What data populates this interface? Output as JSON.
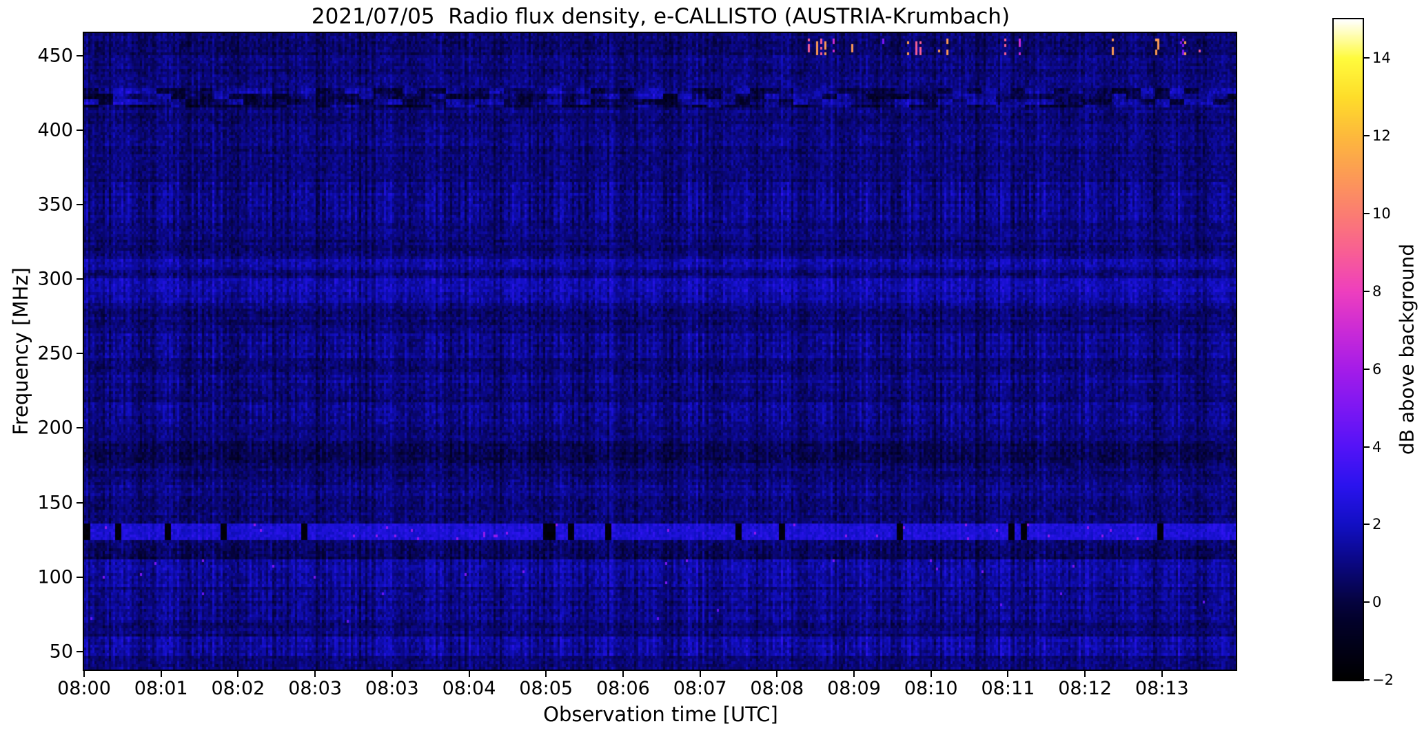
{
  "figure": {
    "background": "#ffffff"
  },
  "chart_data": {
    "type": "heatmap",
    "title": "2021/07/05  Radio flux density, e-CALLISTO (AUSTRIA-Krumbach)",
    "xlabel": "Observation time [UTC]",
    "ylabel": "Frequency [MHz]",
    "x_ticks": [
      "08:00",
      "08:01",
      "08:02",
      "08:03",
      "08:03",
      "08:04",
      "08:05",
      "08:06",
      "08:07",
      "08:08",
      "08:09",
      "08:10",
      "08:11",
      "08:12",
      "08:13"
    ],
    "y_ticks": [
      {
        "label": "450",
        "value": 450
      },
      {
        "label": "400",
        "value": 400
      },
      {
        "label": "350",
        "value": 350
      },
      {
        "label": "300",
        "value": 300
      },
      {
        "label": "250",
        "value": 250
      },
      {
        "label": "200",
        "value": 200
      },
      {
        "label": "150",
        "value": 150
      },
      {
        "label": "100",
        "value": 100
      },
      {
        "label": "50",
        "value": 50
      }
    ],
    "x_range_utc": [
      "08:00",
      "08:14"
    ],
    "y_range_mhz": [
      37,
      466
    ],
    "grid": false,
    "legend": "none",
    "background_color_hint": "#0a0890",
    "colorbar": {
      "label": "dB above background",
      "ticks": [
        {
          "label": "14",
          "value": 14
        },
        {
          "label": "12",
          "value": 12
        },
        {
          "label": "10",
          "value": 10
        },
        {
          "label": "8",
          "value": 8
        },
        {
          "label": "6",
          "value": 6
        },
        {
          "label": "4",
          "value": 4
        },
        {
          "label": "2",
          "value": 2
        },
        {
          "label": "0",
          "value": 0
        },
        {
          "label": "−2",
          "value": -2
        }
      ],
      "range": [
        -2,
        15
      ],
      "colormap": "gnuplot2-like",
      "stops": [
        {
          "v": -2.0,
          "c": "#000000"
        },
        {
          "v": -0.5,
          "c": "#02012a"
        },
        {
          "v": 0.0,
          "c": "#05033f"
        },
        {
          "v": 1.0,
          "c": "#0a0782"
        },
        {
          "v": 2.0,
          "c": "#120fc4"
        },
        {
          "v": 3.0,
          "c": "#2b13ee"
        },
        {
          "v": 4.0,
          "c": "#5413f7"
        },
        {
          "v": 5.0,
          "c": "#7d17f3"
        },
        {
          "v": 6.0,
          "c": "#a51ce8"
        },
        {
          "v": 7.0,
          "c": "#cb2bd6"
        },
        {
          "v": 8.0,
          "c": "#ee3fbe"
        },
        {
          "v": 9.0,
          "c": "#f85e95"
        },
        {
          "v": 10.0,
          "c": "#fb7d72"
        },
        {
          "v": 11.0,
          "c": "#fc9b55"
        },
        {
          "v": 12.0,
          "c": "#fdb93c"
        },
        {
          "v": 13.0,
          "c": "#fedd2a"
        },
        {
          "v": 14.0,
          "c": "#fffb3d"
        },
        {
          "v": 15.0,
          "c": "#ffffff"
        }
      ]
    },
    "background_level_db": 0.78,
    "noise_sigma_db": 0.55,
    "texture": "vertical instrument sweep striping over dark blue background",
    "bands": [
      {
        "f_lo": 450,
        "f_hi": 463,
        "kind": "rfi_spikes",
        "x_start_frac": 0.62,
        "spike_prob": 0.09,
        "spike_values_db": [
          5,
          7,
          9,
          11
        ],
        "base_add_db": -0.1
      },
      {
        "f_lo": 415,
        "f_hi": 429,
        "kind": "mottled",
        "block_amp_db": 1.25,
        "base_add_db": -0.1,
        "stripe_mul": 1.1
      },
      {
        "f_lo": 386,
        "f_hi": 398,
        "kind": "texture",
        "base_add_db": 0.15,
        "stripe_mul": 1.2
      },
      {
        "f_lo": 338,
        "f_hi": 366,
        "kind": "stripes",
        "base_add_db": 0.35,
        "stripe_mul": 1.7
      },
      {
        "f_lo": 306,
        "f_hi": 313,
        "kind": "bright_line",
        "base_add_db": 0.7,
        "stripe_mul": 1.2
      },
      {
        "f_lo": 284,
        "f_hi": 301,
        "kind": "bright",
        "base_add_db": 0.8,
        "stripe_mul": 1.3
      },
      {
        "f_lo": 246,
        "f_hi": 263,
        "kind": "stripes",
        "base_add_db": 0.4,
        "stripe_mul": 1.6
      },
      {
        "f_lo": 222,
        "f_hi": 236,
        "kind": "stripes",
        "base_add_db": 0.25,
        "stripe_mul": 1.4
      },
      {
        "f_lo": 203,
        "f_hi": 218,
        "kind": "stripes",
        "base_add_db": 0.3,
        "stripe_mul": 1.5
      },
      {
        "f_lo": 176,
        "f_hi": 190,
        "kind": "dark",
        "base_add_db": -0.55,
        "stripe_mul": 1.1
      },
      {
        "f_lo": 150,
        "f_hi": 163,
        "kind": "texture",
        "base_add_db": 0.2,
        "stripe_mul": 1.2
      },
      {
        "f_lo": 124,
        "f_hi": 136,
        "kind": "bright_band_with_dropouts",
        "base_db": 2.4,
        "dropout_prob": 0.1,
        "dropout_db": -1.6,
        "rfi_dot_prob": 0.008,
        "rfi_dot_db": 5.5
      },
      {
        "f_lo": 112,
        "f_hi": 123,
        "kind": "dark",
        "base_add_db": -0.35,
        "stripe_mul": 1.2
      },
      {
        "f_lo": 92,
        "f_hi": 111,
        "kind": "bright",
        "base_add_db": 0.65,
        "stripe_mul": 1.5,
        "dot_prob": 0.003,
        "dot_db": 5.0
      },
      {
        "f_lo": 68,
        "f_hi": 91,
        "kind": "texture",
        "base_add_db": 0.35,
        "stripe_mul": 1.4,
        "dot_prob": 0.002,
        "dot_db": 4.5
      },
      {
        "f_lo": 46,
        "f_hi": 60,
        "kind": "bright",
        "base_add_db": 0.7,
        "stripe_mul": 1.6
      }
    ]
  }
}
